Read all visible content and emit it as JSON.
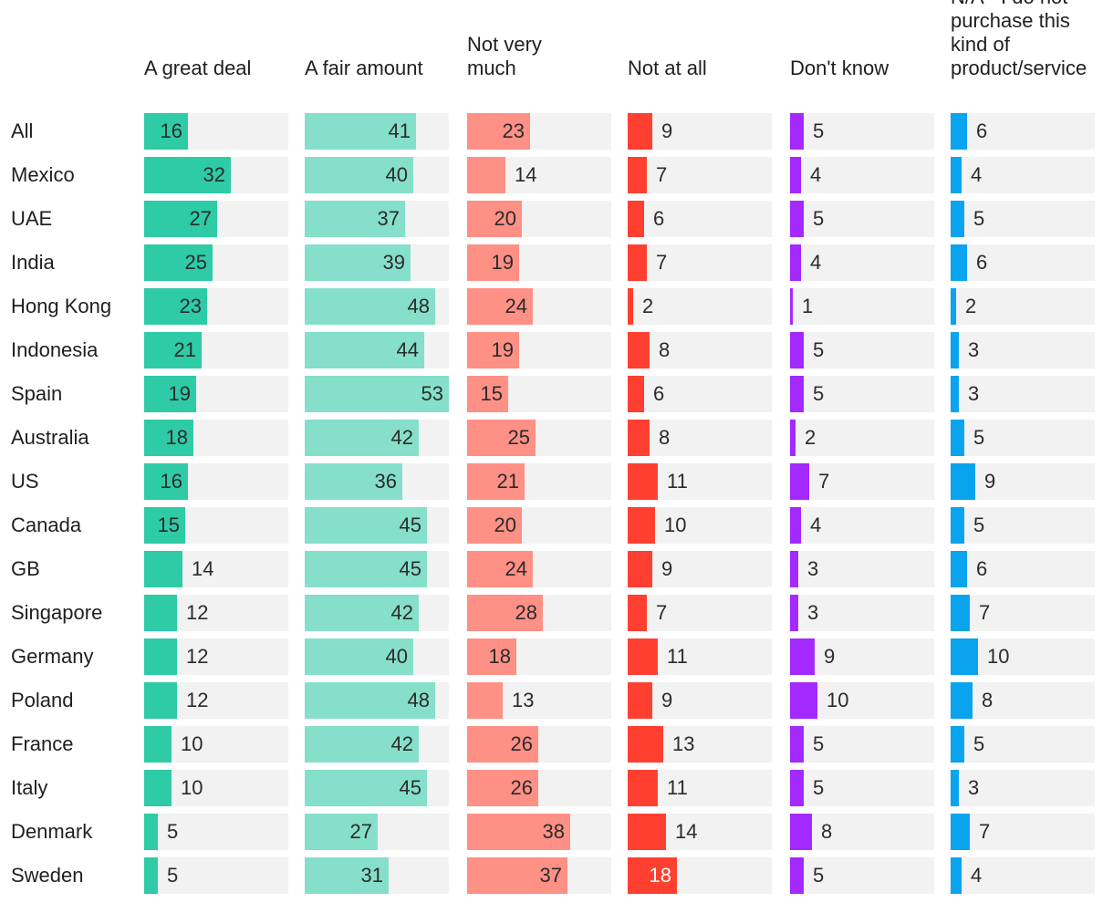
{
  "chart_data": {
    "type": "bar",
    "title": "",
    "categories": [
      "All",
      "Mexico",
      "UAE",
      "India",
      "Hong Kong",
      "Indonesia",
      "Spain",
      "Australia",
      "US",
      "Canada",
      "GB",
      "Singapore",
      "Germany",
      "Poland",
      "France",
      "Italy",
      "Denmark",
      "Sweden"
    ],
    "series": [
      {
        "name": "A great deal",
        "color": "#2ecba6",
        "values": [
          16,
          32,
          27,
          25,
          23,
          21,
          19,
          18,
          16,
          15,
          14,
          12,
          12,
          12,
          10,
          10,
          5,
          5
        ]
      },
      {
        "name": "A fair amount",
        "color": "#85dfca",
        "values": [
          41,
          40,
          37,
          39,
          48,
          44,
          53,
          42,
          36,
          45,
          45,
          42,
          40,
          48,
          42,
          45,
          27,
          31
        ]
      },
      {
        "name": "Not very\nmuch",
        "color": "#ff9085",
        "values": [
          23,
          14,
          20,
          19,
          24,
          19,
          15,
          25,
          21,
          20,
          24,
          28,
          18,
          13,
          26,
          26,
          38,
          37
        ]
      },
      {
        "name": "Not at all",
        "color": "#ff4030",
        "values": [
          9,
          7,
          6,
          7,
          2,
          8,
          6,
          8,
          11,
          10,
          9,
          7,
          11,
          9,
          13,
          11,
          14,
          18
        ]
      },
      {
        "name": "Don't know",
        "color": "#a329ff",
        "values": [
          5,
          4,
          5,
          4,
          1,
          5,
          5,
          2,
          7,
          4,
          3,
          3,
          9,
          10,
          5,
          5,
          8,
          5
        ]
      },
      {
        "name": "N/A - I do not\npurchase this\nkind of\nproduct/service",
        "color": "#0aa3ee",
        "values": [
          6,
          4,
          5,
          6,
          2,
          3,
          3,
          5,
          9,
          5,
          6,
          7,
          10,
          8,
          5,
          3,
          7,
          4
        ]
      }
    ],
    "xlim": [
      0,
      53
    ],
    "xlabel": "",
    "ylabel": ""
  }
}
